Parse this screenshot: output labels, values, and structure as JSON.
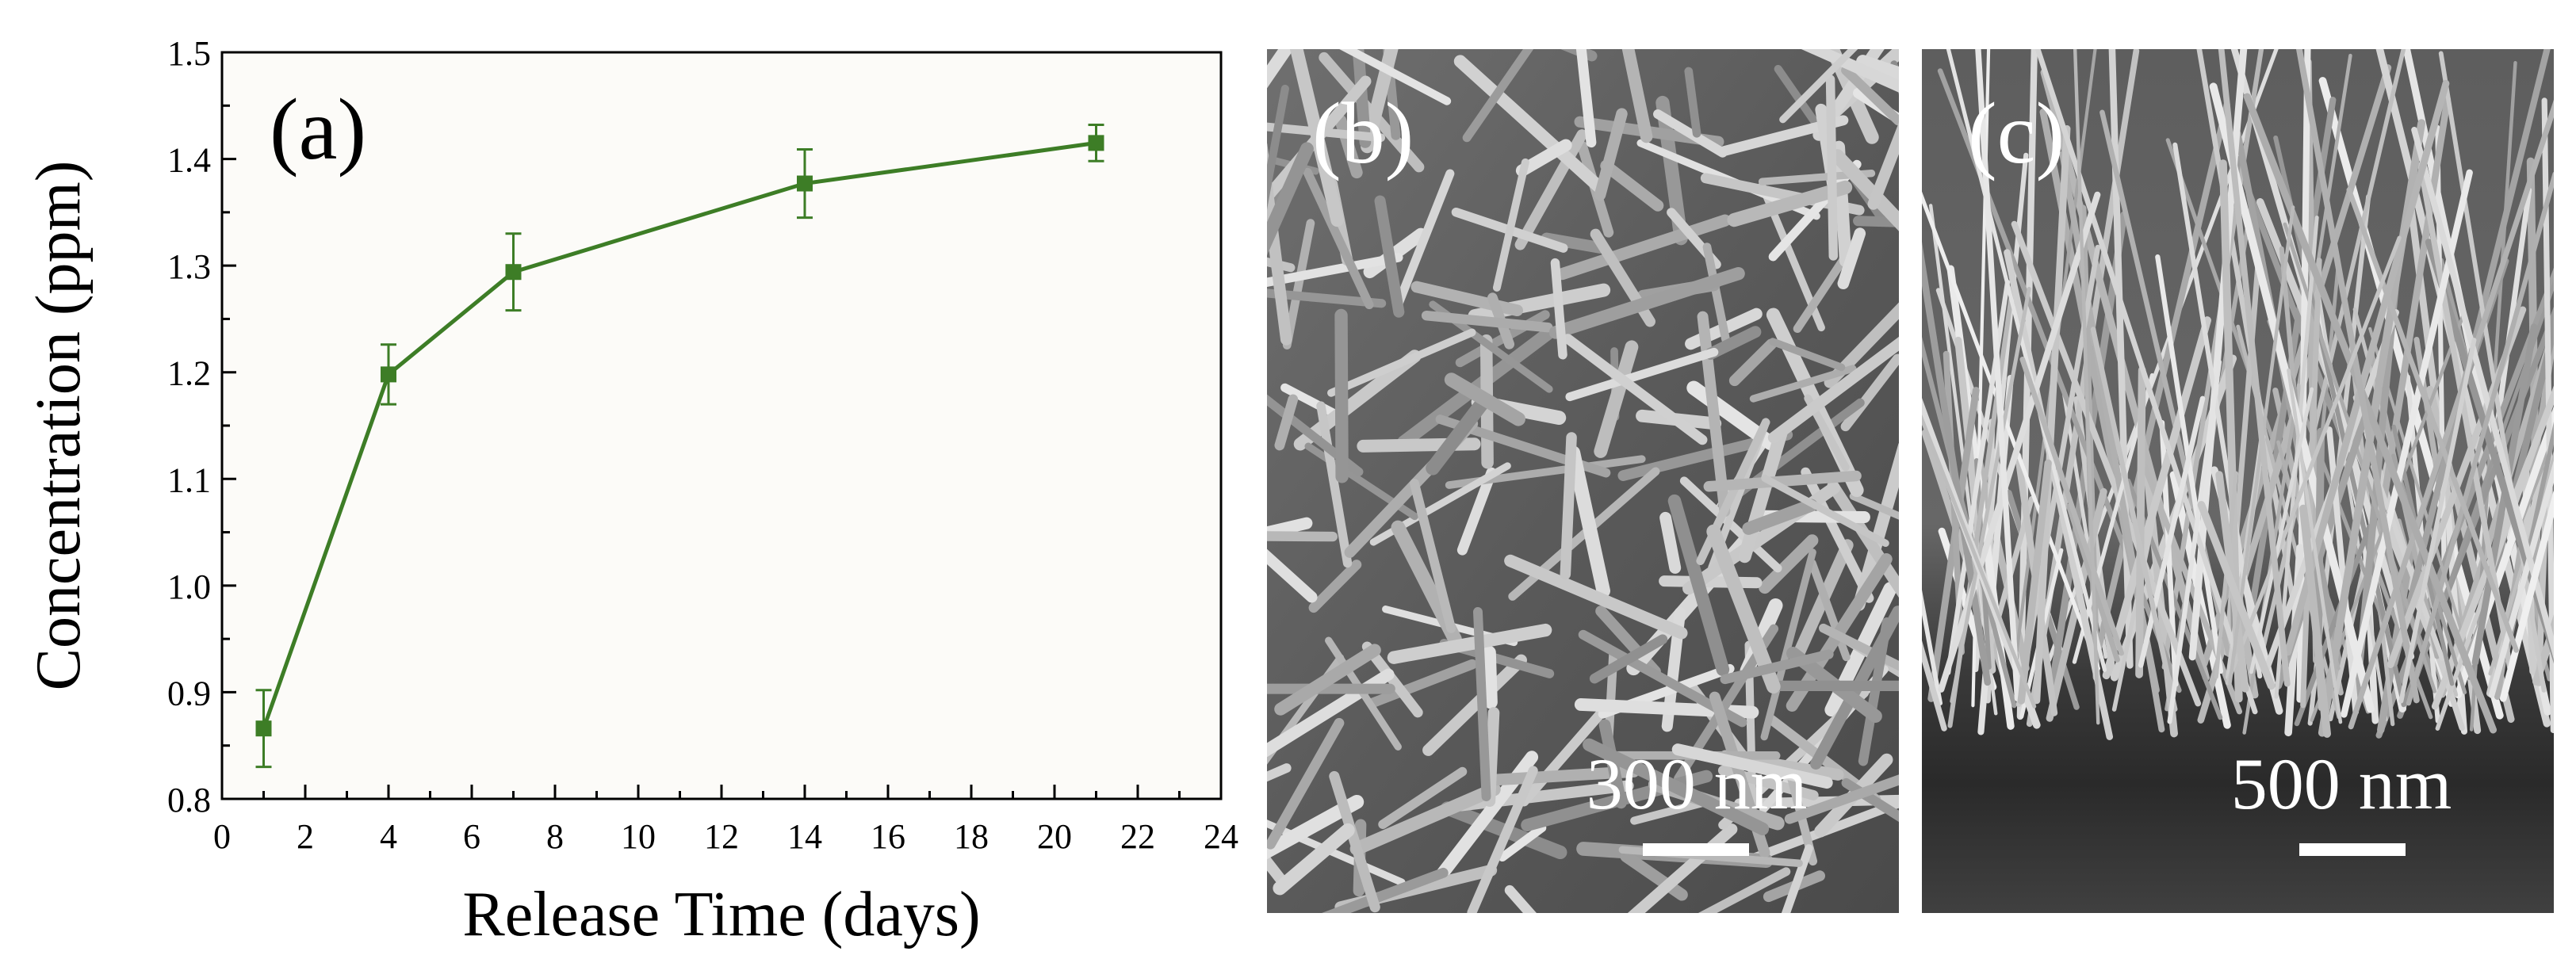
{
  "panels": {
    "a": {
      "label": "(a)"
    },
    "b": {
      "label": "(b)",
      "scale_bar": "300 nm"
    },
    "c": {
      "label": "(c)",
      "scale_bar": "500 nm"
    }
  },
  "colors": {
    "series": "#3d7d26",
    "plot_background": "#fcfbf8",
    "axis": "#000000",
    "sem_text": "#ffffff"
  },
  "chart_data": {
    "type": "line",
    "title": "",
    "xlabel": "Release Time (days)",
    "ylabel": "Concentration (ppm)",
    "xlim": [
      0,
      24
    ],
    "ylim": [
      0.8,
      1.5
    ],
    "xticks": [
      0,
      2,
      4,
      6,
      8,
      10,
      12,
      14,
      16,
      18,
      20,
      22,
      24
    ],
    "yticks": [
      "0.8",
      "0.9",
      "1.0",
      "1.1",
      "1.2",
      "1.3",
      "1.4",
      "1.5"
    ],
    "grid": false,
    "legend": "none",
    "marker": "square",
    "series": [
      {
        "x": [
          1,
          4,
          7,
          14,
          21
        ],
        "y": [
          0.866,
          1.198,
          1.294,
          1.377,
          1.415
        ],
        "error": [
          0.036,
          0.028,
          0.036,
          0.032,
          0.017
        ]
      }
    ]
  }
}
